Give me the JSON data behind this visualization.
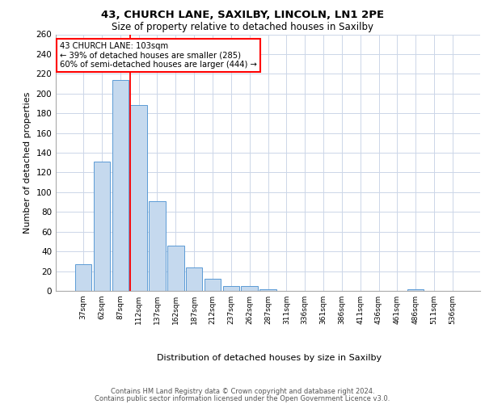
{
  "title1": "43, CHURCH LANE, SAXILBY, LINCOLN, LN1 2PE",
  "title2": "Size of property relative to detached houses in Saxilby",
  "xlabel": "Distribution of detached houses by size in Saxilby",
  "ylabel": "Number of detached properties",
  "categories": [
    "37sqm",
    "62sqm",
    "87sqm",
    "112sqm",
    "137sqm",
    "162sqm",
    "187sqm",
    "212sqm",
    "237sqm",
    "262sqm",
    "287sqm",
    "311sqm",
    "336sqm",
    "361sqm",
    "386sqm",
    "411sqm",
    "436sqm",
    "461sqm",
    "486sqm",
    "511sqm",
    "536sqm"
  ],
  "values": [
    27,
    131,
    214,
    188,
    91,
    46,
    24,
    12,
    5,
    5,
    2,
    0,
    0,
    0,
    0,
    0,
    0,
    0,
    2,
    0,
    0
  ],
  "bar_color": "#c5d9ee",
  "bar_edge_color": "#5b9bd5",
  "annotation_line1": "43 CHURCH LANE: 103sqm",
  "annotation_line2": "← 39% of detached houses are smaller (285)",
  "annotation_line3": "60% of semi-detached houses are larger (444) →",
  "vline_color": "#ff0000",
  "vline_x": 2.52,
  "ylim": [
    0,
    260
  ],
  "yticks": [
    0,
    20,
    40,
    60,
    80,
    100,
    120,
    140,
    160,
    180,
    200,
    220,
    240,
    260
  ],
  "footer1": "Contains HM Land Registry data © Crown copyright and database right 2024.",
  "footer2": "Contains public sector information licensed under the Open Government Licence v3.0.",
  "background_color": "#ffffff",
  "grid_color": "#ccd6e8"
}
